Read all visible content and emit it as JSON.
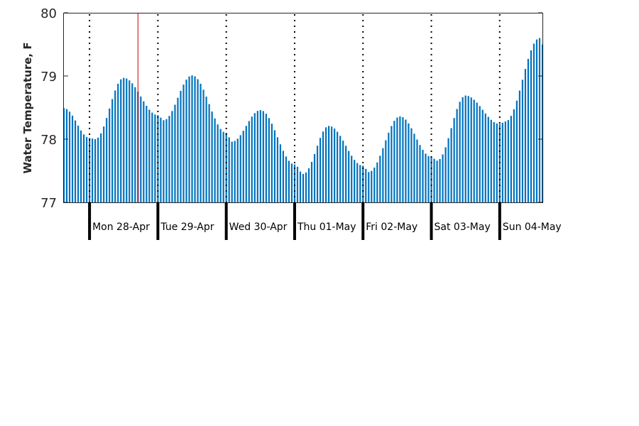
{
  "chart_data": {
    "type": "bar",
    "title": "",
    "xlabel": "",
    "ylabel": "Water Temperature, F",
    "ylim": [
      77,
      80
    ],
    "yticks": [
      77,
      78,
      79,
      80
    ],
    "grid": false,
    "legend": "none",
    "bar_color": "#0072bd",
    "marker_line_color": "#cc0000",
    "x_range_hours": [
      -9,
      159
    ],
    "marker_line_hour": 17,
    "days": [
      {
        "label": "Mon 28-Apr",
        "start_hour": 0
      },
      {
        "label": "Tue 29-Apr",
        "start_hour": 24
      },
      {
        "label": "Wed 30-Apr",
        "start_hour": 48
      },
      {
        "label": "Thu 01-May",
        "start_hour": 72
      },
      {
        "label": "Fri 02-May",
        "start_hour": 96
      },
      {
        "label": "Sat 03-May",
        "start_hour": 120
      },
      {
        "label": "Sun 04-May",
        "start_hour": 144
      }
    ],
    "keypoints": [
      {
        "hour": -9,
        "value": 78.49
      },
      {
        "hour": 0,
        "value": 78.02
      },
      {
        "hour": 2,
        "value": 78.0
      },
      {
        "hour": 12,
        "value": 78.97
      },
      {
        "hour": 24,
        "value": 78.38
      },
      {
        "hour": 26,
        "value": 78.3
      },
      {
        "hour": 36,
        "value": 79.01
      },
      {
        "hour": 48,
        "value": 78.1
      },
      {
        "hour": 50,
        "value": 77.96
      },
      {
        "hour": 60,
        "value": 78.46
      },
      {
        "hour": 72,
        "value": 77.6
      },
      {
        "hour": 75,
        "value": 77.45
      },
      {
        "hour": 84,
        "value": 78.21
      },
      {
        "hour": 96,
        "value": 77.58
      },
      {
        "hour": 98,
        "value": 77.48
      },
      {
        "hour": 109,
        "value": 78.36
      },
      {
        "hour": 120,
        "value": 77.72
      },
      {
        "hour": 122,
        "value": 77.66
      },
      {
        "hour": 132,
        "value": 78.69
      },
      {
        "hour": 144,
        "value": 78.24
      },
      {
        "hour": 146,
        "value": 78.28
      },
      {
        "hour": 158,
        "value": 79.6
      },
      {
        "hour": 159,
        "value": 79.5
      }
    ]
  }
}
